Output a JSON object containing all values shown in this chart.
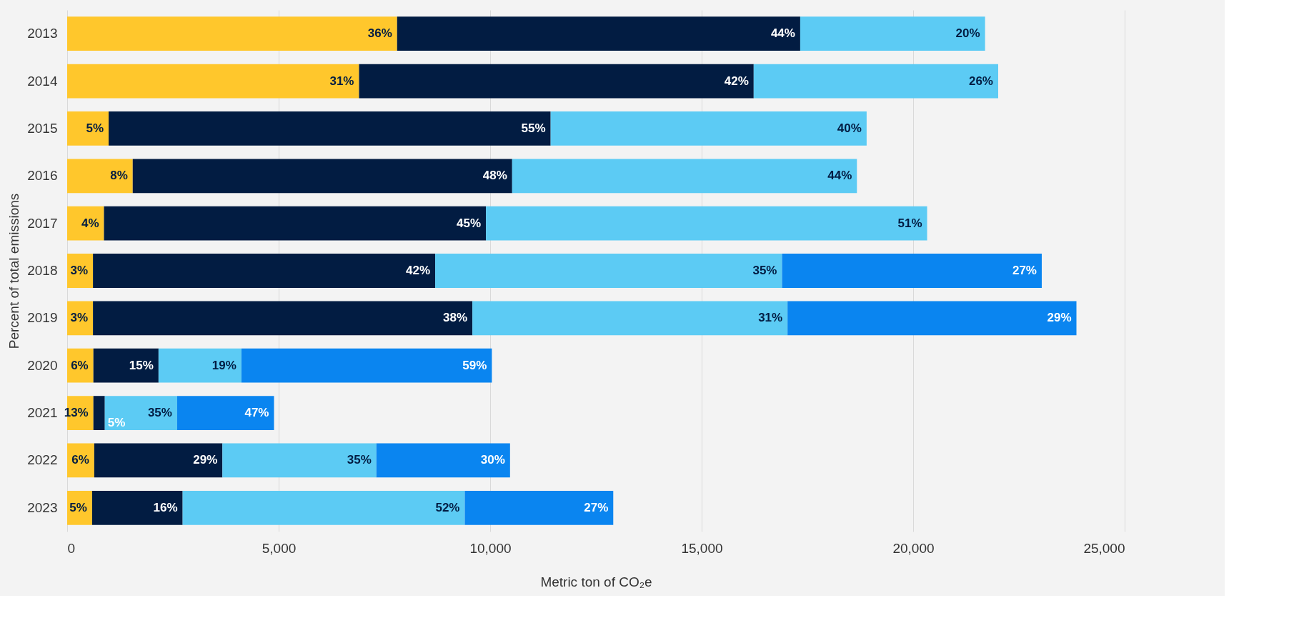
{
  "chart_data": {
    "type": "bar",
    "orientation": "horizontal",
    "stacked": true,
    "xlabel": "Metric ton of CO₂e",
    "ylabel": "Percent of total emissions",
    "categories": [
      "2013",
      "2014",
      "2015",
      "2016",
      "2017",
      "2018",
      "2019",
      "2020",
      "2021",
      "2022",
      "2023"
    ],
    "xlim": [
      0,
      25000
    ],
    "xticks": [
      {
        "value": 0,
        "label": "0"
      },
      {
        "value": 5000,
        "label": "5,000"
      },
      {
        "value": 10000,
        "label": "10,000"
      },
      {
        "value": 15000,
        "label": "15,000"
      },
      {
        "value": 20000,
        "label": "20,000"
      },
      {
        "value": 25000,
        "label": "25,000"
      }
    ],
    "grid": "x",
    "series": [
      {
        "color": "#ffc72c",
        "values": [
          7800,
          6900,
          980,
          1550,
          870,
          610,
          610,
          620,
          620,
          640,
          590
        ]
      },
      {
        "color": "#021c42",
        "values": [
          9530,
          9330,
          10450,
          8970,
          9030,
          8090,
          8970,
          1540,
          270,
          3030,
          2140
        ]
      },
      {
        "color": "#5ccbf4",
        "values": [
          4370,
          5780,
          7470,
          8150,
          10430,
          8200,
          7450,
          1960,
          1710,
          3640,
          6670
        ]
      },
      {
        "color": "#0a85f0",
        "values": [
          null,
          null,
          null,
          null,
          null,
          6140,
          6830,
          5920,
          2290,
          3160,
          3510
        ]
      }
    ],
    "annotations": [
      {
        "text": "36%",
        "x": 7800,
        "y": "2013"
      },
      {
        "text": "44%",
        "x": 17330,
        "y": "2013"
      },
      {
        "text": "20%",
        "x": 21700,
        "y": "2013"
      },
      {
        "text": "31%",
        "x": 6900,
        "y": "2014"
      },
      {
        "text": "42%",
        "x": 16230,
        "y": "2014"
      },
      {
        "text": "26%",
        "x": 22010,
        "y": "2014"
      },
      {
        "text": "5%",
        "x": 980,
        "y": "2015"
      },
      {
        "text": "55%",
        "x": 11430,
        "y": "2015"
      },
      {
        "text": "40%",
        "x": 18900,
        "y": "2015"
      },
      {
        "text": "8%",
        "x": 1550,
        "y": "2016"
      },
      {
        "text": "48%",
        "x": 10520,
        "y": "2016"
      },
      {
        "text": "44%",
        "x": 18670,
        "y": "2016"
      },
      {
        "text": "4%",
        "x": 870,
        "y": "2017"
      },
      {
        "text": "45%",
        "x": 9900,
        "y": "2017"
      },
      {
        "text": "51%",
        "x": 20330,
        "y": "2017"
      },
      {
        "text": "3%",
        "x": 610,
        "y": "2018"
      },
      {
        "text": "42%",
        "x": 8700,
        "y": "2018"
      },
      {
        "text": "35%",
        "x": 16900,
        "y": "2018"
      },
      {
        "text": "27%",
        "x": 23040,
        "y": "2018"
      },
      {
        "text": "3%",
        "x": 610,
        "y": "2019"
      },
      {
        "text": "38%",
        "x": 9580,
        "y": "2019"
      },
      {
        "text": "31%",
        "x": 17030,
        "y": "2019"
      },
      {
        "text": "29%",
        "x": 23860,
        "y": "2019"
      },
      {
        "text": "6%",
        "x": 620,
        "y": "2020"
      },
      {
        "text": "15%",
        "x": 2160,
        "y": "2020"
      },
      {
        "text": "19%",
        "x": 4120,
        "y": "2020"
      },
      {
        "text": "59%",
        "x": 10040,
        "y": "2020"
      },
      {
        "text": "13%",
        "x": 620,
        "y": "2021"
      },
      {
        "text": "5%",
        "x": 890,
        "y": "2021"
      },
      {
        "text": "35%",
        "x": 2600,
        "y": "2021"
      },
      {
        "text": "47%",
        "x": 4890,
        "y": "2021"
      },
      {
        "text": "6%",
        "x": 640,
        "y": "2022"
      },
      {
        "text": "29%",
        "x": 3670,
        "y": "2022"
      },
      {
        "text": "35%",
        "x": 7310,
        "y": "2022"
      },
      {
        "text": "30%",
        "x": 10470,
        "y": "2022"
      },
      {
        "text": "5%",
        "x": 590,
        "y": "2023"
      },
      {
        "text": "16%",
        "x": 2730,
        "y": "2023"
      },
      {
        "text": "52%",
        "x": 9400,
        "y": "2023"
      },
      {
        "text": "27%",
        "x": 12910,
        "y": "2023"
      }
    ]
  }
}
